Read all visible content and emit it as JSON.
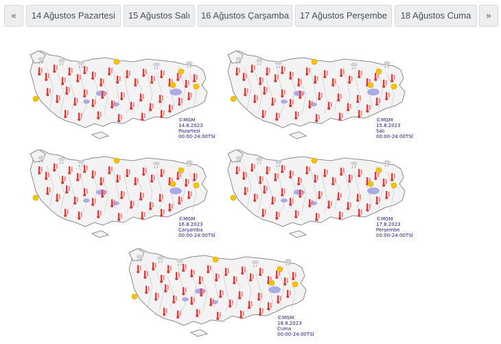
{
  "nav": {
    "prev_label": "«",
    "next_label": "»",
    "tabs": [
      {
        "label": "14 Ağustos Pazartesi"
      },
      {
        "label": "15 Ağustos Salı"
      },
      {
        "label": "16 Ağustos Çarşamba"
      },
      {
        "label": "17 Ağustos Perşembe"
      },
      {
        "label": "18 Ağustos Cuma"
      }
    ]
  },
  "maps": [
    {
      "credit": "©MGM",
      "date": "14.8.2023",
      "day": "Pazartesi",
      "hours": "00:00-24:00TSİ"
    },
    {
      "credit": "©MGM",
      "date": "15.8.2023",
      "day": "Salı",
      "hours": "00:00-24:00TSİ"
    },
    {
      "credit": "©MGM",
      "date": "16.8.2023",
      "day": "Çarşamba",
      "hours": "00:00-24:00TSİ"
    },
    {
      "credit": "©MGM",
      "date": "17.8.2023",
      "day": "Perşembe",
      "hours": "00:00-24:00TSİ"
    },
    {
      "credit": "©MGM",
      "date": "18.8.2023",
      "day": "Cuma",
      "hours": "00:00-24:00TSİ"
    }
  ],
  "colors": {
    "land": "#f3f3f3",
    "border": "#8a8a8a",
    "lake": "#a9abe8",
    "thermometer": "#e03a3a",
    "sun": "#f5c400",
    "cloud": "#cfd3da",
    "rain": "#5fa84a"
  }
}
